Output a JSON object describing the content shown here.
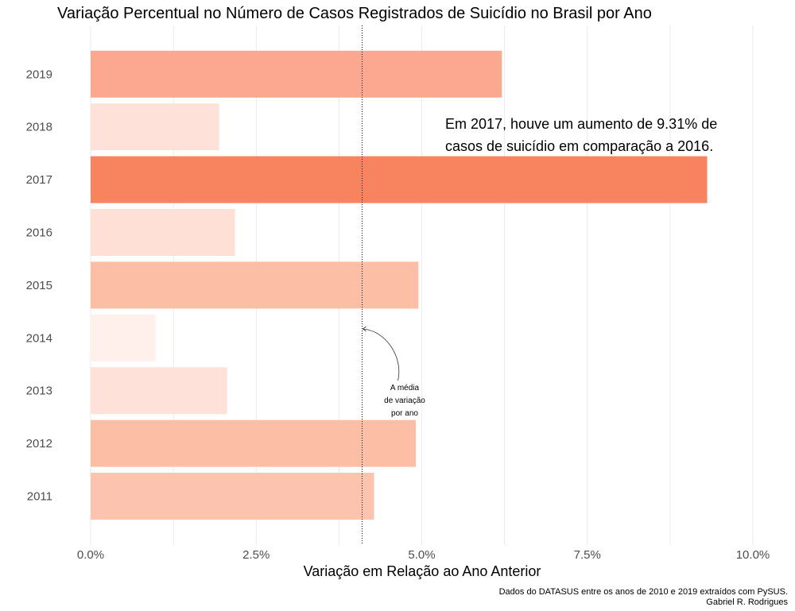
{
  "chart_data": {
    "type": "bar",
    "orientation": "horizontal",
    "title": "Variação Percentual no Número de Casos Registrados de Suicídio no Brasil por Ano",
    "xlabel": "Variação em Relação ao Ano Anterior",
    "ylabel": "",
    "xlim": [
      0,
      10
    ],
    "x_ticks": [
      0,
      2.5,
      5,
      7.5,
      10
    ],
    "x_tick_labels": [
      "0.0%",
      "2.5%",
      "5.0%",
      "7.5%",
      "10.0%"
    ],
    "grid": true,
    "categories": [
      "2011",
      "2012",
      "2013",
      "2014",
      "2015",
      "2016",
      "2017",
      "2018",
      "2019"
    ],
    "values": [
      4.28,
      4.91,
      2.06,
      0.98,
      4.95,
      2.18,
      9.31,
      1.94,
      6.21
    ],
    "colors": [
      "#fcc4ae",
      "#fcbea5",
      "#fee2da",
      "#fff0ec",
      "#fcbea5",
      "#fee0d6",
      "#f7845f",
      "#fee2da",
      "#fca890"
    ],
    "mean_line": 4.1,
    "annotations": {
      "highlight": {
        "lines": [
          "Em 2017, houve um aumento de 9.31% de",
          "casos de suicídio em comparação a 2016."
        ]
      },
      "mean": {
        "lines": [
          "A média",
          "de variação",
          "por ano"
        ]
      }
    },
    "caption": [
      "Dados do DATASUS entre os anos de 2010 e 2019 extraídos com PySUS.",
      "Gabriel R. Rodrigues"
    ]
  }
}
